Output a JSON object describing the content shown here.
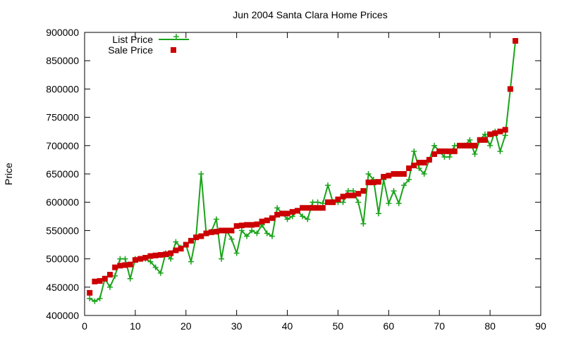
{
  "chart_data": {
    "type": "line",
    "title": "Jun 2004 Santa Clara Home Prices",
    "xlabel": "",
    "ylabel": "Price",
    "xlim": [
      0,
      90
    ],
    "ylim": [
      400000,
      900000
    ],
    "x_ticks": [
      0,
      10,
      20,
      30,
      40,
      50,
      60,
      70,
      80,
      90
    ],
    "y_ticks": [
      400000,
      450000,
      500000,
      550000,
      600000,
      650000,
      700000,
      750000,
      800000,
      850000,
      900000
    ],
    "grid": false,
    "legend_position": "top-left",
    "series": [
      {
        "name": "List Price",
        "style": "line-plus",
        "color": "#1aa31a",
        "x": [
          1,
          2,
          3,
          4,
          5,
          6,
          7,
          8,
          9,
          10,
          11,
          12,
          13,
          14,
          15,
          16,
          17,
          18,
          19,
          20,
          21,
          22,
          23,
          24,
          25,
          26,
          27,
          28,
          29,
          30,
          31,
          32,
          33,
          34,
          35,
          36,
          37,
          38,
          39,
          40,
          41,
          42,
          43,
          44,
          45,
          46,
          47,
          48,
          49,
          50,
          51,
          52,
          53,
          54,
          55,
          56,
          57,
          58,
          59,
          60,
          61,
          62,
          63,
          64,
          65,
          66,
          67,
          68,
          69,
          70,
          71,
          72,
          73,
          74,
          75,
          76,
          77,
          78,
          79,
          80,
          81,
          82,
          83,
          84,
          85
        ],
        "values": [
          430000,
          425000,
          430000,
          465000,
          450000,
          470000,
          500000,
          500000,
          465000,
          500000,
          500000,
          500000,
          495000,
          485000,
          475000,
          510000,
          500000,
          530000,
          520000,
          525000,
          495000,
          540000,
          650000,
          545000,
          548000,
          570000,
          500000,
          550000,
          535000,
          510000,
          550000,
          540000,
          550000,
          545000,
          560000,
          545000,
          540000,
          590000,
          580000,
          570000,
          575000,
          585000,
          575000,
          570000,
          600000,
          600000,
          598000,
          630000,
          600000,
          600000,
          600000,
          620000,
          620000,
          600000,
          562000,
          650000,
          640000,
          580000,
          640000,
          598000,
          620000,
          598000,
          630000,
          640000,
          690000,
          660000,
          650000,
          675000,
          700000,
          690000,
          680000,
          680000,
          700000,
          700000,
          700000,
          710000,
          685000,
          710000,
          720000,
          700000,
          725000,
          690000,
          718000,
          800000,
          885000
        ]
      },
      {
        "name": "Sale Price",
        "style": "square",
        "color": "#cc0000",
        "x": [
          1,
          2,
          3,
          4,
          5,
          6,
          7,
          8,
          9,
          10,
          11,
          12,
          13,
          14,
          15,
          16,
          17,
          18,
          19,
          20,
          21,
          22,
          23,
          24,
          25,
          26,
          27,
          28,
          29,
          30,
          31,
          32,
          33,
          34,
          35,
          36,
          37,
          38,
          39,
          40,
          41,
          42,
          43,
          44,
          45,
          46,
          47,
          48,
          49,
          50,
          51,
          52,
          53,
          54,
          55,
          56,
          57,
          58,
          59,
          60,
          61,
          62,
          63,
          64,
          65,
          66,
          67,
          68,
          69,
          70,
          71,
          72,
          73,
          74,
          75,
          76,
          77,
          78,
          79,
          80,
          81,
          82,
          83,
          84,
          85
        ],
        "values": [
          440000,
          460000,
          461000,
          465000,
          472000,
          485000,
          488000,
          489000,
          490000,
          498000,
          500000,
          502000,
          505000,
          506000,
          507000,
          508000,
          510000,
          515000,
          518000,
          525000,
          532000,
          538000,
          540000,
          545000,
          547000,
          548000,
          550000,
          550000,
          550000,
          558000,
          559000,
          560000,
          560000,
          561000,
          566000,
          568000,
          572000,
          578000,
          580000,
          580000,
          583000,
          585000,
          590000,
          590000,
          590000,
          590000,
          590000,
          600000,
          600000,
          605000,
          610000,
          612000,
          612000,
          615000,
          620000,
          635000,
          635000,
          636000,
          645000,
          647000,
          650000,
          650000,
          650000,
          660000,
          665000,
          670000,
          670000,
          675000,
          685000,
          690000,
          690000,
          690000,
          690000,
          700000,
          700000,
          700000,
          700000,
          710000,
          710000,
          720000,
          722000,
          725000,
          728000,
          800000,
          885000
        ]
      }
    ]
  }
}
